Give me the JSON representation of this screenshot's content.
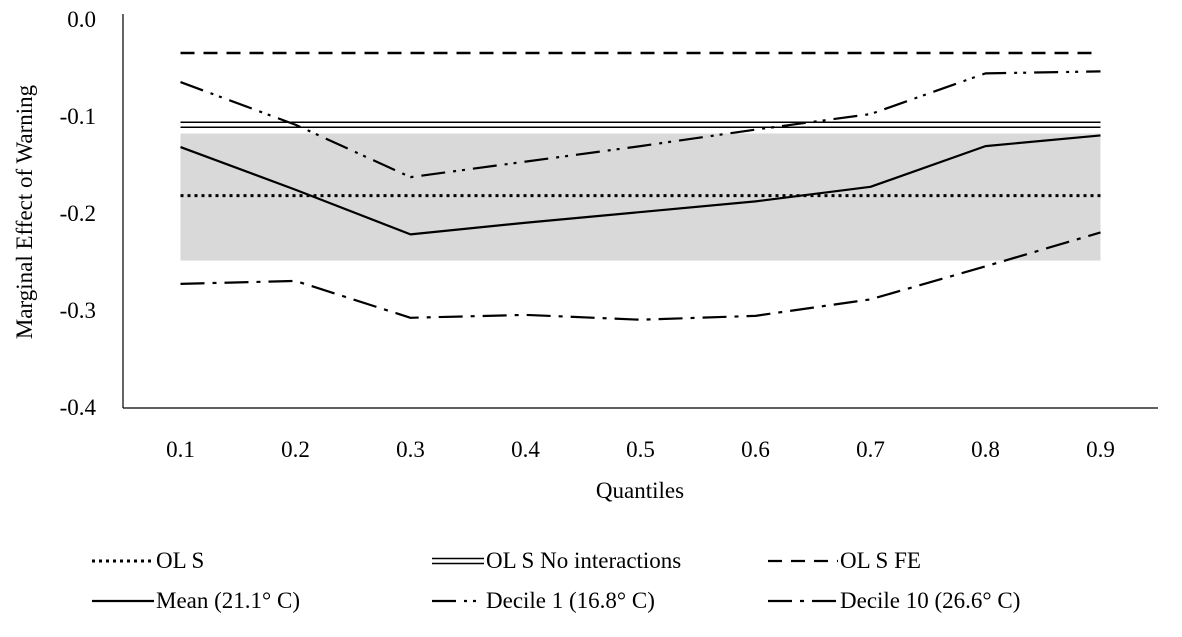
{
  "chart_data": {
    "type": "line",
    "title": "",
    "xlabel": "Quantiles",
    "ylabel": "Marginal Effect of Warning",
    "x": [
      0.1,
      0.2,
      0.3,
      0.4,
      0.5,
      0.6,
      0.7,
      0.8,
      0.9
    ],
    "x_tick_labels": [
      "0.1",
      "0.2",
      "0.3",
      "0.4",
      "0.5",
      "0.6",
      "0.7",
      "0.8",
      "0.9"
    ],
    "ylim": [
      -0.4,
      0.0
    ],
    "y_ticks": [
      0.0,
      -0.1,
      -0.2,
      -0.3,
      -0.4
    ],
    "y_tick_labels": [
      "0.0",
      "-0.1",
      "-0.2",
      "-0.3",
      "-0.4"
    ],
    "grid": false,
    "legend_position": "bottom",
    "shaded_band": {
      "low": -0.248,
      "high": -0.117,
      "color": "#d9d9d9"
    },
    "horizontal_lines": [
      {
        "name": "OL S",
        "value": -0.181,
        "style": "dotted"
      },
      {
        "name": "OL S No interactions",
        "value": -0.108,
        "style": "double"
      },
      {
        "name": "OL S FE",
        "value": -0.034,
        "style": "dashed"
      }
    ],
    "series": [
      {
        "name": "Mean (21.1° C)",
        "style": "solid",
        "values": [
          -0.131,
          -0.175,
          -0.221,
          -0.209,
          -0.198,
          -0.187,
          -0.172,
          -0.13,
          -0.119
        ]
      },
      {
        "name": "Decile 1 (16.8° C)",
        "style": "dash-dot-dot",
        "values": [
          -0.064,
          -0.108,
          -0.162,
          -0.146,
          -0.13,
          -0.113,
          -0.097,
          -0.055,
          -0.053
        ]
      },
      {
        "name": "Decile 10 (26.6° C)",
        "style": "dash-dot",
        "values": [
          -0.272,
          -0.269,
          -0.307,
          -0.304,
          -0.309,
          -0.305,
          -0.288,
          -0.254,
          -0.219
        ]
      }
    ]
  }
}
